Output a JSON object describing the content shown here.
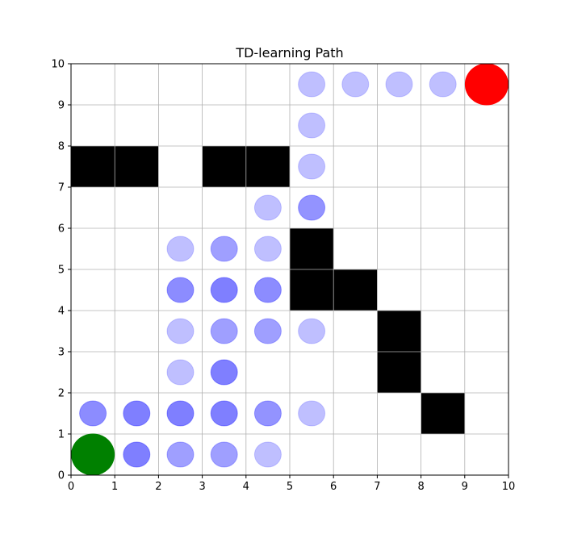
{
  "chart_data": {
    "type": "scatter",
    "title": "TD-learning Path",
    "xlabel": "",
    "ylabel": "",
    "xlim": [
      0,
      10
    ],
    "ylim": [
      0,
      10
    ],
    "xticks": [
      "0",
      "1",
      "2",
      "3",
      "4",
      "5",
      "6",
      "7",
      "8",
      "9",
      "10"
    ],
    "yticks": [
      "0",
      "1",
      "2",
      "3",
      "4",
      "5",
      "6",
      "7",
      "8",
      "9",
      "10"
    ],
    "grid": true,
    "colors": {
      "wall": "#000000",
      "path": "#0000ff",
      "start": "#008000",
      "goal": "#ff0000",
      "grid": "#b0b0b0"
    },
    "walls": [
      {
        "x": 0,
        "y": 7
      },
      {
        "x": 1,
        "y": 7
      },
      {
        "x": 3,
        "y": 7
      },
      {
        "x": 4,
        "y": 7
      },
      {
        "x": 5,
        "y": 5
      },
      {
        "x": 5,
        "y": 4
      },
      {
        "x": 6,
        "y": 4
      },
      {
        "x": 7,
        "y": 3
      },
      {
        "x": 7,
        "y": 2
      },
      {
        "x": 8,
        "y": 1
      }
    ],
    "start": {
      "x": 0.5,
      "y": 0.5
    },
    "goal": {
      "x": 9.5,
      "y": 9.5
    },
    "visits": [
      {
        "x": 0.5,
        "y": 1.5,
        "alpha": 0.9
      },
      {
        "x": 1.5,
        "y": 0.5,
        "alpha": 1.0
      },
      {
        "x": 1.5,
        "y": 1.5,
        "alpha": 1.0
      },
      {
        "x": 2.5,
        "y": 0.5,
        "alpha": 0.75
      },
      {
        "x": 2.5,
        "y": 1.5,
        "alpha": 1.0
      },
      {
        "x": 2.5,
        "y": 2.5,
        "alpha": 0.5
      },
      {
        "x": 2.5,
        "y": 3.5,
        "alpha": 0.5
      },
      {
        "x": 2.5,
        "y": 4.5,
        "alpha": 0.9
      },
      {
        "x": 2.5,
        "y": 5.5,
        "alpha": 0.5
      },
      {
        "x": 3.5,
        "y": 0.5,
        "alpha": 0.75
      },
      {
        "x": 3.5,
        "y": 1.5,
        "alpha": 1.0
      },
      {
        "x": 3.5,
        "y": 2.5,
        "alpha": 1.0
      },
      {
        "x": 3.5,
        "y": 3.5,
        "alpha": 0.75
      },
      {
        "x": 3.5,
        "y": 4.5,
        "alpha": 1.0
      },
      {
        "x": 3.5,
        "y": 5.5,
        "alpha": 0.75
      },
      {
        "x": 4.5,
        "y": 0.5,
        "alpha": 0.5
      },
      {
        "x": 4.5,
        "y": 1.5,
        "alpha": 0.85
      },
      {
        "x": 4.5,
        "y": 3.5,
        "alpha": 0.75
      },
      {
        "x": 4.5,
        "y": 4.5,
        "alpha": 0.9
      },
      {
        "x": 4.5,
        "y": 5.5,
        "alpha": 0.5
      },
      {
        "x": 4.5,
        "y": 6.5,
        "alpha": 0.5
      },
      {
        "x": 5.5,
        "y": 1.5,
        "alpha": 0.5
      },
      {
        "x": 5.5,
        "y": 3.5,
        "alpha": 0.5
      },
      {
        "x": 5.5,
        "y": 6.5,
        "alpha": 0.85
      },
      {
        "x": 5.5,
        "y": 7.5,
        "alpha": 0.5
      },
      {
        "x": 5.5,
        "y": 8.5,
        "alpha": 0.5
      },
      {
        "x": 5.5,
        "y": 9.5,
        "alpha": 0.5
      },
      {
        "x": 6.5,
        "y": 9.5,
        "alpha": 0.5
      },
      {
        "x": 7.5,
        "y": 9.5,
        "alpha": 0.5
      },
      {
        "x": 8.5,
        "y": 9.5,
        "alpha": 0.5
      }
    ]
  }
}
